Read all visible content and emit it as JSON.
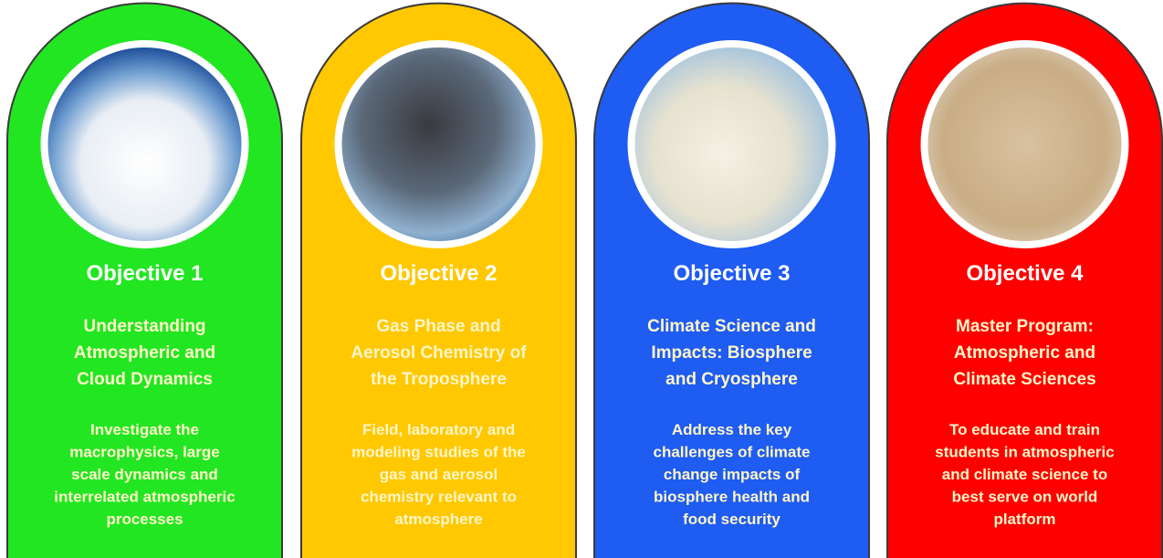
{
  "cards": [
    {
      "color": "#22e622",
      "title": "Objective 1",
      "subtitle": [
        "Understanding",
        "Atmospheric and",
        "Cloud Dynamics"
      ],
      "description": [
        "Investigate the",
        "macrophysics, large",
        "scale dynamics and",
        "interrelated atmospheric",
        "processes"
      ]
    },
    {
      "color": "#ffc800",
      "title": "Objective 2",
      "subtitle": [
        "Gas Phase and",
        "Aerosol Chemistry of",
        "the Troposphere"
      ],
      "description": [
        "Field, laboratory and",
        "modeling studies of the",
        "gas and aerosol",
        "chemistry relevant to",
        "atmosphere"
      ]
    },
    {
      "color": "#1e5cf2",
      "title": "Objective 3",
      "subtitle": [
        "Climate Science and",
        "Impacts: Biosphere",
        "and Cryosphere"
      ],
      "description": [
        "Address the key",
        "challenges of climate",
        "change impacts of",
        "biosphere health and",
        "food security"
      ]
    },
    {
      "color": "#ff0000",
      "title": "Objective 4",
      "subtitle": [
        "Master Program:",
        "Atmospheric and",
        "Climate Sciences"
      ],
      "description": [
        "To educate and train",
        "students in atmospheric",
        "and climate science to",
        "best serve on world",
        "platform"
      ]
    }
  ]
}
